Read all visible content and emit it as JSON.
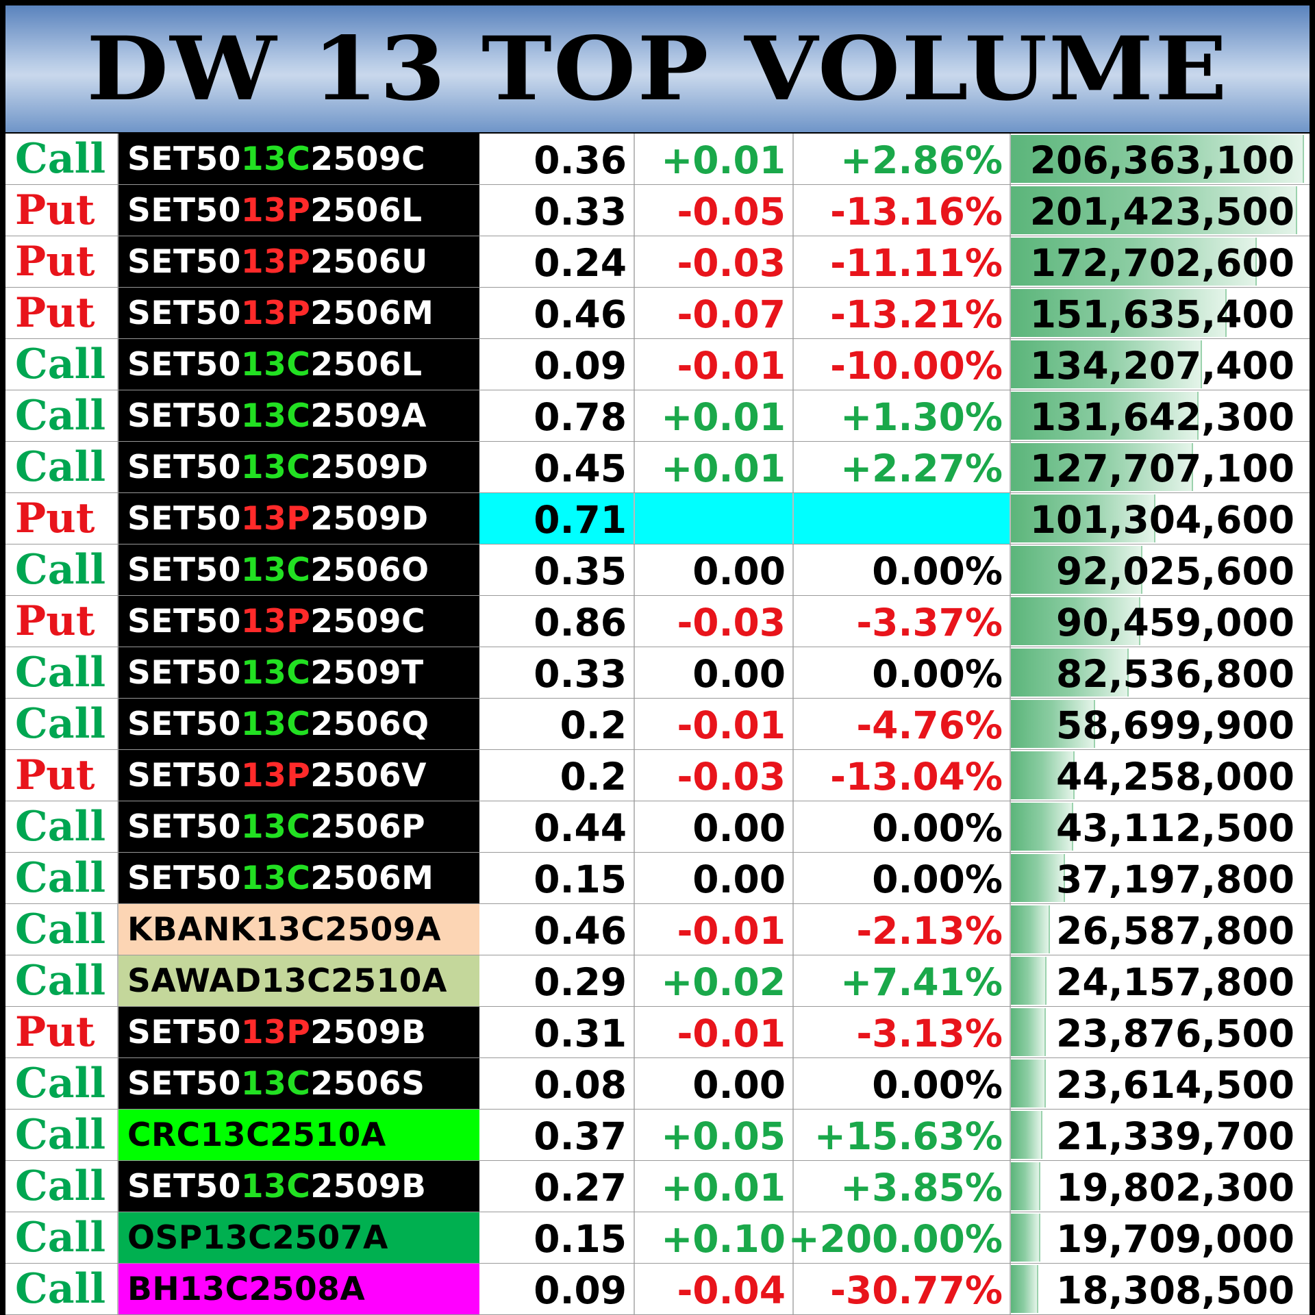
{
  "title": "DW 13 TOP VOLUME",
  "colors": {
    "call": "#00a651",
    "put": "#e8141b",
    "code_call": "#22e022",
    "code_put": "#ff2a2a",
    "positive": "#1aa84a",
    "negative": "#e8141b",
    "neutral": "#000000",
    "highlight_cyan": "#00ffff"
  },
  "max_volume": 206363100,
  "rows": [
    {
      "type": "Call",
      "name_pre": "SET50",
      "name_code": "13C",
      "name_post": "2509C",
      "name_bg": "#000000",
      "name_color": "#ffffff",
      "code_color": "#22e022",
      "price": "0.36",
      "change": "+0.01",
      "pct": "+2.86%",
      "trend": "up",
      "volume": "206,363,100",
      "volume_value": 206363100
    },
    {
      "type": "Put",
      "name_pre": "SET50",
      "name_code": "13P",
      "name_post": "2506L",
      "name_bg": "#000000",
      "name_color": "#ffffff",
      "code_color": "#ff2a2a",
      "price": "0.33",
      "change": "-0.05",
      "pct": "-13.16%",
      "trend": "down",
      "volume": "201,423,500",
      "volume_value": 201423500
    },
    {
      "type": "Put",
      "name_pre": "SET50",
      "name_code": "13P",
      "name_post": "2506U",
      "name_bg": "#000000",
      "name_color": "#ffffff",
      "code_color": "#ff2a2a",
      "price": "0.24",
      "change": "-0.03",
      "pct": "-11.11%",
      "trend": "down",
      "volume": "172,702,600",
      "volume_value": 172702600
    },
    {
      "type": "Put",
      "name_pre": "SET50",
      "name_code": "13P",
      "name_post": "2506M",
      "name_bg": "#000000",
      "name_color": "#ffffff",
      "code_color": "#ff2a2a",
      "price": "0.46",
      "change": "-0.07",
      "pct": "-13.21%",
      "trend": "down",
      "volume": "151,635,400",
      "volume_value": 151635400
    },
    {
      "type": "Call",
      "name_pre": "SET50",
      "name_code": "13C",
      "name_post": "2506L",
      "name_bg": "#000000",
      "name_color": "#ffffff",
      "code_color": "#22e022",
      "price": "0.09",
      "change": "-0.01",
      "pct": "-10.00%",
      "trend": "down",
      "volume": "134,207,400",
      "volume_value": 134207400
    },
    {
      "type": "Call",
      "name_pre": "SET50",
      "name_code": "13C",
      "name_post": "2509A",
      "name_bg": "#000000",
      "name_color": "#ffffff",
      "code_color": "#22e022",
      "price": "0.78",
      "change": "+0.01",
      "pct": "+1.30%",
      "trend": "up",
      "volume": "131,642,300",
      "volume_value": 131642300
    },
    {
      "type": "Call",
      "name_pre": "SET50",
      "name_code": "13C",
      "name_post": "2509D",
      "name_bg": "#000000",
      "name_color": "#ffffff",
      "code_color": "#22e022",
      "price": "0.45",
      "change": "+0.01",
      "pct": "+2.27%",
      "trend": "up",
      "volume": "127,707,100",
      "volume_value": 127707100
    },
    {
      "type": "Put",
      "name_pre": "SET50",
      "name_code": "13P",
      "name_post": "2509D",
      "name_bg": "#000000",
      "name_color": "#ffffff",
      "code_color": "#ff2a2a",
      "price": "0.71",
      "change": "",
      "pct": "",
      "trend": "none",
      "highlight": true,
      "volume": "101,304,600",
      "volume_value": 101304600
    },
    {
      "type": "Call",
      "name_pre": "SET50",
      "name_code": "13C",
      "name_post": "2506O",
      "name_bg": "#000000",
      "name_color": "#ffffff",
      "code_color": "#22e022",
      "price": "0.35",
      "change": "0.00",
      "pct": "0.00%",
      "trend": "flat",
      "volume": "92,025,600",
      "volume_value": 92025600
    },
    {
      "type": "Put",
      "name_pre": "SET50",
      "name_code": "13P",
      "name_post": "2509C",
      "name_bg": "#000000",
      "name_color": "#ffffff",
      "code_color": "#ff2a2a",
      "price": "0.86",
      "change": "-0.03",
      "pct": "-3.37%",
      "trend": "down",
      "volume": "90,459,000",
      "volume_value": 90459000
    },
    {
      "type": "Call",
      "name_pre": "SET50",
      "name_code": "13C",
      "name_post": "2509T",
      "name_bg": "#000000",
      "name_color": "#ffffff",
      "code_color": "#22e022",
      "price": "0.33",
      "change": "0.00",
      "pct": "0.00%",
      "trend": "flat",
      "volume": "82,536,800",
      "volume_value": 82536800
    },
    {
      "type": "Call",
      "name_pre": "SET50",
      "name_code": "13C",
      "name_post": "2506Q",
      "name_bg": "#000000",
      "name_color": "#ffffff",
      "code_color": "#22e022",
      "price": "0.2",
      "change": "-0.01",
      "pct": "-4.76%",
      "trend": "down",
      "volume": "58,699,900",
      "volume_value": 58699900
    },
    {
      "type": "Put",
      "name_pre": "SET50",
      "name_code": "13P",
      "name_post": "2506V",
      "name_bg": "#000000",
      "name_color": "#ffffff",
      "code_color": "#ff2a2a",
      "price": "0.2",
      "change": "-0.03",
      "pct": "-13.04%",
      "trend": "down",
      "volume": "44,258,000",
      "volume_value": 44258000
    },
    {
      "type": "Call",
      "name_pre": "SET50",
      "name_code": "13C",
      "name_post": "2506P",
      "name_bg": "#000000",
      "name_color": "#ffffff",
      "code_color": "#22e022",
      "price": "0.44",
      "change": "0.00",
      "pct": "0.00%",
      "trend": "flat",
      "volume": "43,112,500",
      "volume_value": 43112500
    },
    {
      "type": "Call",
      "name_pre": "SET50",
      "name_code": "13C",
      "name_post": "2506M",
      "name_bg": "#000000",
      "name_color": "#ffffff",
      "code_color": "#22e022",
      "price": "0.15",
      "change": "0.00",
      "pct": "0.00%",
      "trend": "flat",
      "volume": "37,197,800",
      "volume_value": 37197800
    },
    {
      "type": "Call",
      "name_pre": "KBANK13C2509A",
      "name_code": "",
      "name_post": "",
      "name_bg": "#fcd5b4",
      "name_color": "#000000",
      "code_color": "#000000",
      "price": "0.46",
      "change": "-0.01",
      "pct": "-2.13%",
      "trend": "down",
      "volume": "26,587,800",
      "volume_value": 26587800
    },
    {
      "type": "Call",
      "name_pre": "SAWAD13C2510A",
      "name_code": "",
      "name_post": "",
      "name_bg": "#c4d79b",
      "name_color": "#000000",
      "code_color": "#000000",
      "price": "0.29",
      "change": "+0.02",
      "pct": "+7.41%",
      "trend": "up",
      "volume": "24,157,800",
      "volume_value": 24157800
    },
    {
      "type": "Put",
      "name_pre": "SET50",
      "name_code": "13P",
      "name_post": "2509B",
      "name_bg": "#000000",
      "name_color": "#ffffff",
      "code_color": "#ff2a2a",
      "price": "0.31",
      "change": "-0.01",
      "pct": "-3.13%",
      "trend": "down",
      "volume": "23,876,500",
      "volume_value": 23876500
    },
    {
      "type": "Call",
      "name_pre": "SET50",
      "name_code": "13C",
      "name_post": "2506S",
      "name_bg": "#000000",
      "name_color": "#ffffff",
      "code_color": "#22e022",
      "price": "0.08",
      "change": "0.00",
      "pct": "0.00%",
      "trend": "flat",
      "volume": "23,614,500",
      "volume_value": 23614500
    },
    {
      "type": "Call",
      "name_pre": "CRC13C2510A",
      "name_code": "",
      "name_post": "",
      "name_bg": "#00ff00",
      "name_color": "#000000",
      "code_color": "#000000",
      "price": "0.37",
      "change": "+0.05",
      "pct": "+15.63%",
      "trend": "up",
      "volume": "21,339,700",
      "volume_value": 21339700
    },
    {
      "type": "Call",
      "name_pre": "SET50",
      "name_code": "13C",
      "name_post": "2509B",
      "name_bg": "#000000",
      "name_color": "#ffffff",
      "code_color": "#22e022",
      "price": "0.27",
      "change": "+0.01",
      "pct": "+3.85%",
      "trend": "up",
      "volume": "19,802,300",
      "volume_value": 19802300
    },
    {
      "type": "Call",
      "name_pre": "OSP13C2507A",
      "name_code": "",
      "name_post": "",
      "name_bg": "#00b050",
      "name_color": "#000000",
      "code_color": "#000000",
      "price": "0.15",
      "change": "+0.10",
      "pct": "+200.00%",
      "trend": "up",
      "volume": "19,709,000",
      "volume_value": 19709000
    },
    {
      "type": "Call",
      "name_pre": "BH13C2508A",
      "name_code": "",
      "name_post": "",
      "name_bg": "#ff00ff",
      "name_color": "#000000",
      "code_color": "#000000",
      "price": "0.09",
      "change": "-0.04",
      "pct": "-30.77%",
      "trend": "down",
      "volume": "18,308,500",
      "volume_value": 18308500
    }
  ]
}
